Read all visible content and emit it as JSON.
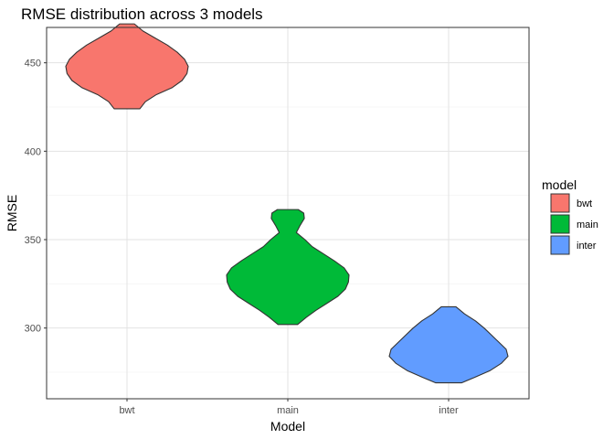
{
  "chart_data": {
    "type": "violin",
    "title": "RMSE distribution across 3 models",
    "xlabel": "Model",
    "ylabel": "RMSE",
    "categories": [
      "bwt",
      "main",
      "inter"
    ],
    "ylim": [
      260,
      470
    ],
    "yticks": [
      300,
      350,
      400,
      450
    ],
    "grid": true,
    "legend": {
      "title": "model",
      "placement": "right",
      "items": [
        {
          "label": "bwt",
          "color": "#F8766D"
        },
        {
          "label": "main",
          "color": "#00BA38"
        },
        {
          "label": "inter",
          "color": "#619CFF"
        }
      ]
    },
    "series": [
      {
        "category": "bwt",
        "color": "#F8766D",
        "min": 424,
        "max": 472,
        "profile": [
          [
            424,
            0.21
          ],
          [
            428,
            0.3
          ],
          [
            432,
            0.48
          ],
          [
            436,
            0.74
          ],
          [
            440,
            0.9
          ],
          [
            444,
            0.98
          ],
          [
            448,
            1.0
          ],
          [
            452,
            0.94
          ],
          [
            456,
            0.82
          ],
          [
            460,
            0.66
          ],
          [
            464,
            0.46
          ],
          [
            468,
            0.26
          ],
          [
            472,
            0.12
          ]
        ]
      },
      {
        "category": "main",
        "color": "#00BA38",
        "min": 302,
        "max": 367,
        "profile": [
          [
            302,
            0.16
          ],
          [
            306,
            0.3
          ],
          [
            310,
            0.46
          ],
          [
            314,
            0.64
          ],
          [
            318,
            0.82
          ],
          [
            322,
            0.94
          ],
          [
            326,
            0.99
          ],
          [
            330,
            1.0
          ],
          [
            334,
            0.92
          ],
          [
            338,
            0.76
          ],
          [
            342,
            0.58
          ],
          [
            346,
            0.4
          ],
          [
            350,
            0.28
          ],
          [
            354,
            0.14
          ],
          [
            358,
            0.2
          ],
          [
            362,
            0.27
          ],
          [
            365,
            0.26
          ],
          [
            367,
            0.17
          ]
        ]
      },
      {
        "category": "inter",
        "color": "#619CFF",
        "min": 269,
        "max": 312,
        "profile": [
          [
            269,
            0.21
          ],
          [
            272,
            0.42
          ],
          [
            276,
            0.68
          ],
          [
            280,
            0.86
          ],
          [
            284,
            0.97
          ],
          [
            288,
            0.94
          ],
          [
            292,
            0.82
          ],
          [
            296,
            0.7
          ],
          [
            300,
            0.58
          ],
          [
            304,
            0.44
          ],
          [
            308,
            0.26
          ],
          [
            312,
            0.12
          ]
        ]
      }
    ]
  }
}
